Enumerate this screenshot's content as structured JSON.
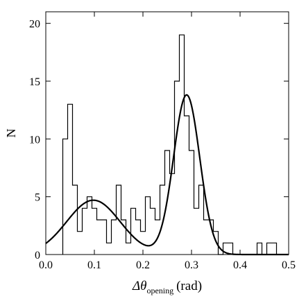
{
  "chart_data": {
    "type": "histogram",
    "xlabel": {
      "symbol": "Δθ",
      "subscript": "opening",
      "unit": "(rad)"
    },
    "ylabel": "N",
    "xlim": [
      0.0,
      0.5
    ],
    "ylim": [
      0,
      21
    ],
    "x_ticks": [
      0.0,
      0.1,
      0.2,
      0.3,
      0.4,
      0.5
    ],
    "x_tick_labels": [
      "0.0",
      "0.1",
      "0.2",
      "0.3",
      "0.4",
      "0.5"
    ],
    "y_ticks": [
      0,
      5,
      10,
      15,
      20
    ],
    "y_tick_labels": [
      "0",
      "5",
      "10",
      "15",
      "20"
    ],
    "grid": false,
    "bin_width": 0.01,
    "histogram": {
      "bin_starts": [
        0.035,
        0.045,
        0.055,
        0.065,
        0.075,
        0.085,
        0.095,
        0.105,
        0.115,
        0.125,
        0.135,
        0.145,
        0.155,
        0.165,
        0.175,
        0.185,
        0.195,
        0.205,
        0.215,
        0.225,
        0.235,
        0.245,
        0.255,
        0.265,
        0.275,
        0.285,
        0.295,
        0.305,
        0.315,
        0.325,
        0.335,
        0.345,
        0.355,
        0.365,
        0.375,
        0.385,
        0.395,
        0.405,
        0.415,
        0.425,
        0.435,
        0.445,
        0.455,
        0.465,
        0.475
      ],
      "counts": [
        10,
        13,
        6,
        2,
        4,
        5,
        4,
        3,
        3,
        1,
        3,
        6,
        3,
        1,
        4,
        3,
        2,
        5,
        4,
        3,
        6,
        9,
        7,
        15,
        19,
        12,
        9,
        4,
        6,
        3,
        3,
        2,
        0,
        1,
        1,
        0,
        0,
        0,
        0,
        0,
        1,
        0,
        1,
        1,
        0
      ]
    },
    "fit_curve": {
      "type": "double-gaussian",
      "components": [
        {
          "amplitude": 4.7,
          "mean": 0.098,
          "sigma": 0.055
        },
        {
          "amplitude": 13.8,
          "mean": 0.29,
          "sigma": 0.027
        }
      ]
    }
  }
}
